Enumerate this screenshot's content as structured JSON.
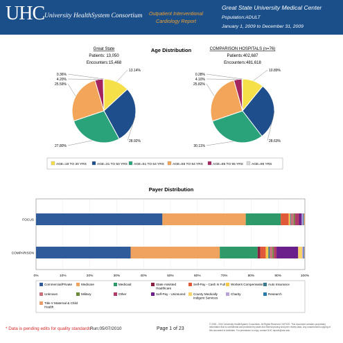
{
  "header": {
    "logo_text": "UHC",
    "consortium": "University HealthSystem Consortium",
    "report_title_line1": "Outpatient Interventional",
    "report_title_line2": "Cardiology Report",
    "hospital": "Great State University Medical Center",
    "population": "Population:ADULT",
    "date_range": "January 1, 2009 to December 31, 2009"
  },
  "colors": {
    "header_bg": "#1b4f8a",
    "age_18_30": "#f6e04a",
    "age_31_50": "#1e4e8c",
    "age_51_64": "#2aa37a",
    "age_65_84": "#f3a65a",
    "age_85_95": "#a3245e",
    "age_95_plus": "#d9d9d9"
  },
  "chart_data": [
    {
      "type": "pie",
      "title": "Age Distribution",
      "panels": [
        {
          "heading": "Great State",
          "patients_label": "Patients: 13,050",
          "encounters_label": "Encounters:15,468",
          "values": [
            13.14,
            28.92,
            27.8,
            25.59,
            4.2,
            0.36
          ],
          "labels": [
            "13.14%",
            "28.92%",
            "27.80%",
            "25.59%",
            "4.20%",
            "0.36%"
          ]
        },
        {
          "heading": "COMPARISON HOSPITALS (n=76)",
          "patients_label": "Patients:402,687",
          "encounters_label": "Encounters:481,618",
          "values": [
            10.89,
            28.63,
            30.11,
            25.82,
            4.1,
            0.28
          ],
          "labels": [
            "10.89%",
            "28.63%",
            "30.11%",
            "25.82%",
            "4.10%",
            "0.28%"
          ]
        }
      ],
      "legend": [
        "AGE=18 TO 30 YRS",
        "AGE=31 TO 50 YRS",
        "AGE=51 TO 64 YRS",
        "AGE=65 TO 84 YRS",
        "AGE=85 TO 95 YRS",
        "AGE=95 YRS"
      ],
      "legend_colors": [
        "#f6e04a",
        "#1e4e8c",
        "#2aa37a",
        "#f3a65a",
        "#a3245e",
        "#d9d9d9"
      ]
    },
    {
      "type": "bar",
      "orientation": "horizontal-stacked-100",
      "title": "Payer Distribution",
      "categories": [
        "FOCUS",
        "COMPARISON"
      ],
      "xlim": [
        0,
        100
      ],
      "x_ticks": [
        "0%",
        "10%",
        "20%",
        "30%",
        "40%",
        "50%",
        "60%",
        "70%",
        "80%",
        "90%",
        "100%"
      ],
      "series": [
        {
          "name": "Commercial/Private",
          "color": "#2f5b9a",
          "values": [
            47,
            35
          ]
        },
        {
          "name": "Medicare",
          "color": "#f0a35e",
          "values": [
            31,
            33
          ]
        },
        {
          "name": "Medicaid",
          "color": "#2e9a6a",
          "values": [
            13,
            14
          ]
        },
        {
          "name": "State Assisted Healthcare",
          "color": "#8b1f3f",
          "values": [
            0,
            1
          ]
        },
        {
          "name": "Self-Pay - Cash In Full",
          "color": "#e05a3a",
          "values": [
            3,
            2
          ]
        },
        {
          "name": "Workers Compensation",
          "color": "#f5c84a",
          "values": [
            0.5,
            1
          ]
        },
        {
          "name": "Auto Insurance",
          "color": "#3a7a8a",
          "values": [
            0.3,
            0.5
          ]
        },
        {
          "name": "Unknown",
          "color": "#c9707a",
          "values": [
            1,
            1
          ]
        },
        {
          "name": "Military",
          "color": "#6a8a3a",
          "values": [
            0.5,
            0.5
          ]
        },
        {
          "name": "Other",
          "color": "#b03a6a",
          "values": [
            1.5,
            1
          ]
        },
        {
          "name": "Self-Pay - Uninsured",
          "color": "#6a1f8a",
          "values": [
            1,
            8
          ]
        },
        {
          "name": "County Medically Indigent Services",
          "color": "#f7d36a",
          "values": [
            0,
            1.5
          ]
        },
        {
          "name": "Charity",
          "color": "#b8a0d8",
          "values": [
            0.5,
            0.5
          ]
        },
        {
          "name": "Research",
          "color": "#2a7aa8",
          "values": [
            0.3,
            0.3
          ]
        },
        {
          "name": "Title V Maternal & Child Health",
          "color": "#e8a070",
          "values": [
            0.4,
            0.2
          ]
        }
      ]
    }
  ],
  "footer": {
    "note": "* Data is pending edits for quality standards",
    "run": "Run:05/07/2010",
    "page": "Page 1 of 23",
    "legal": "© 2000 - 2010 University HealthSystem Consortium. All Rights Reserved. NOTICE: This document contains proprietary information that is confidential and protected by state and federal privacy and peer review laws. Any unauthorized copying of this document is forbidden. For permission to copy, contact UHC reports@uhc.edu."
  }
}
